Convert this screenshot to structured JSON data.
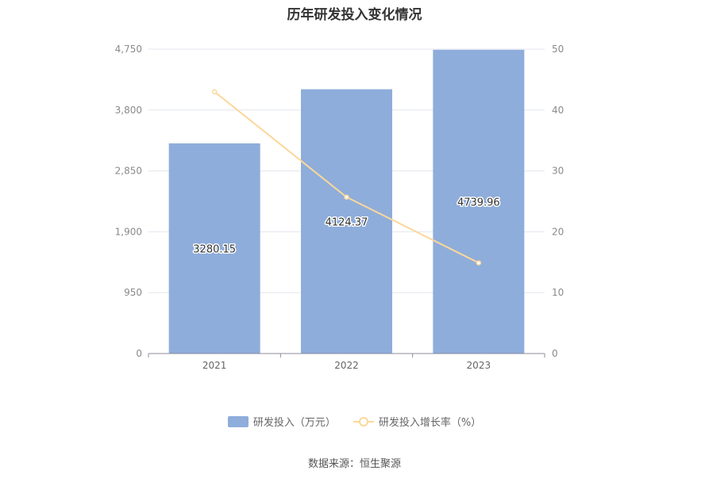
{
  "chart_data": {
    "type": "bar",
    "title": "历年研发投入变化情况",
    "categories": [
      "2021",
      "2022",
      "2023"
    ],
    "series": [
      {
        "name": "研发投入（万元）",
        "type": "bar",
        "axis": "left",
        "values": [
          3280.15,
          4124.37,
          4739.96
        ],
        "color": "#8eaddb"
      },
      {
        "name": "研发投入增长率（%）",
        "type": "line",
        "axis": "right",
        "values": [
          43,
          25.7,
          14.9
        ],
        "color": "#fcd79a"
      }
    ],
    "y_left": {
      "ticks": [
        "0",
        "950",
        "1,900",
        "2,850",
        "3,800",
        "4,750"
      ],
      "range": [
        0,
        4750
      ]
    },
    "y_right": {
      "ticks": [
        "0",
        "10",
        "20",
        "30",
        "40",
        "50"
      ],
      "range": [
        0,
        50
      ]
    },
    "data_labels": [
      "3280.15",
      "4124.37",
      "4739.96"
    ],
    "grid": true,
    "legend_position": "bottom"
  },
  "source": "数据来源：恒生聚源"
}
